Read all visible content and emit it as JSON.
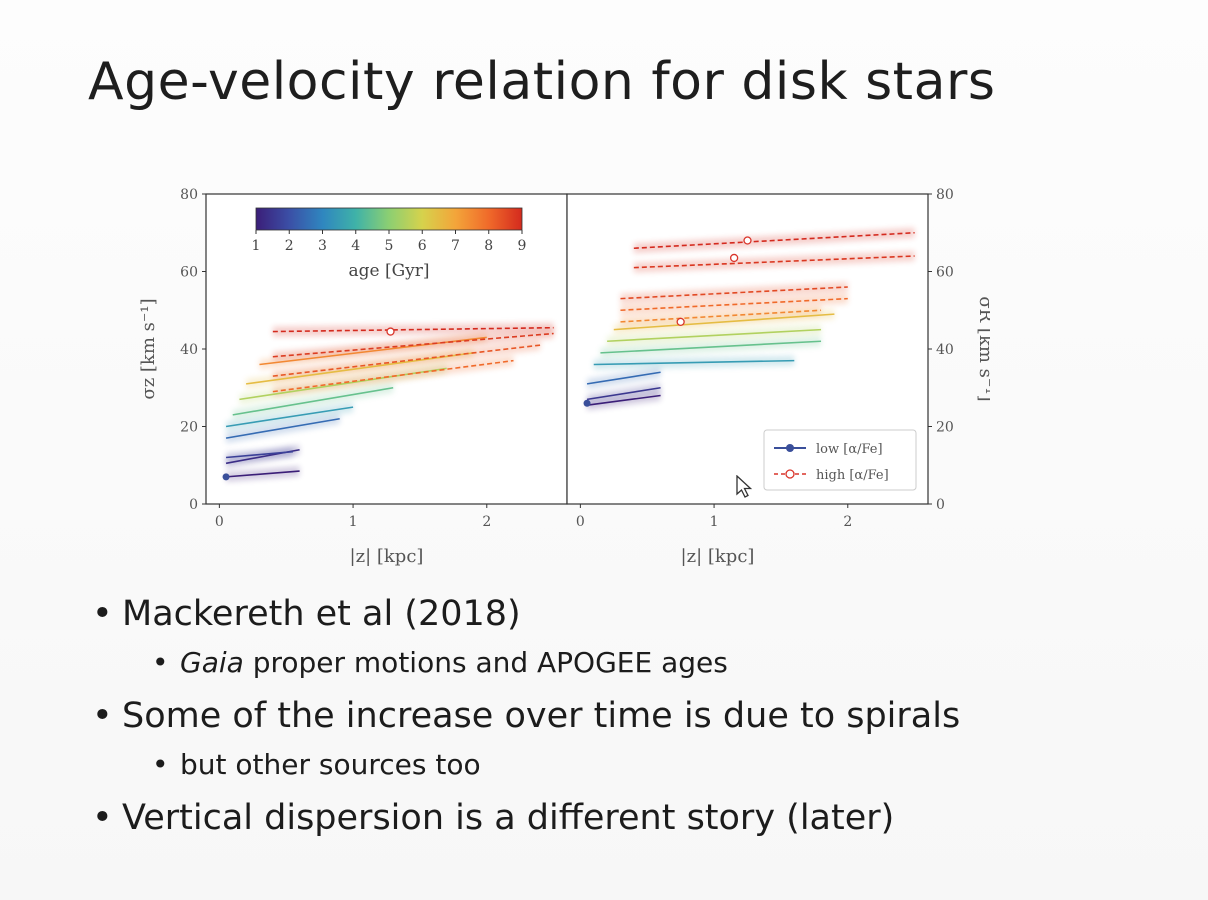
{
  "slide": {
    "title": "Age-velocity relation for disk stars",
    "bullets": [
      {
        "level": 1,
        "text": "Mackereth et al (2018)"
      },
      {
        "level": 2,
        "italic_prefix": "Gaia",
        "text": " proper motions and APOGEE ages"
      },
      {
        "level": 1,
        "text": "Some of the increase over time is due to spirals"
      },
      {
        "level": 2,
        "text": "but other sources too"
      },
      {
        "level": 1,
        "text": "Vertical dispersion is a different story (later)"
      }
    ]
  },
  "colors": {
    "age_scale": [
      "#3b1e78",
      "#3b4fa6",
      "#2f86bf",
      "#3fb2a8",
      "#8ccf72",
      "#d6d24c",
      "#f3a53a",
      "#f06a2a",
      "#d42a1e"
    ],
    "low_alpha_marker": "#3a4f9a",
    "high_alpha_marker": "#d9342a",
    "axis": "#333333",
    "tick_text": "#555555"
  },
  "chart_data": [
    {
      "type": "line",
      "panel": "left",
      "xlabel": "|z| [kpc]",
      "ylabel": "σz [km s⁻¹]",
      "xlim": [
        -0.1,
        2.6
      ],
      "ylim": [
        0,
        80
      ],
      "xticks": [
        0,
        1,
        2
      ],
      "yticks": [
        0,
        20,
        40,
        60,
        80
      ],
      "colorbar": {
        "label": "age [Gyr]",
        "min": 1,
        "max": 9,
        "ticks": [
          1,
          2,
          3,
          4,
          5,
          6,
          7,
          8,
          9
        ]
      },
      "series": [
        {
          "age": 1.0,
          "style": "solid",
          "x": [
            0.05,
            0.6
          ],
          "y": [
            7,
            8.5
          ]
        },
        {
          "age": 1.3,
          "style": "solid",
          "x": [
            0.05,
            0.6
          ],
          "y": [
            10.5,
            14
          ]
        },
        {
          "age": 1.7,
          "style": "solid",
          "x": [
            0.05,
            0.55
          ],
          "y": [
            12,
            13.5
          ]
        },
        {
          "age": 2.5,
          "style": "solid",
          "x": [
            0.05,
            0.9
          ],
          "y": [
            17,
            22
          ]
        },
        {
          "age": 3.5,
          "style": "solid",
          "x": [
            0.05,
            1.0
          ],
          "y": [
            20,
            25
          ]
        },
        {
          "age": 4.5,
          "style": "solid",
          "x": [
            0.1,
            1.3
          ],
          "y": [
            23,
            30
          ]
        },
        {
          "age": 5.5,
          "style": "solid",
          "x": [
            0.15,
            1.7
          ],
          "y": [
            27,
            35
          ]
        },
        {
          "age": 6.5,
          "style": "solid",
          "x": [
            0.2,
            1.9
          ],
          "y": [
            31,
            39
          ]
        },
        {
          "age": 7.5,
          "style": "solid",
          "x": [
            0.3,
            2.0
          ],
          "y": [
            36,
            43
          ]
        },
        {
          "age": 8.0,
          "style": "dashed",
          "x": [
            0.4,
            2.2
          ],
          "y": [
            29,
            37
          ]
        },
        {
          "age": 8.3,
          "style": "dashed",
          "x": [
            0.4,
            2.4
          ],
          "y": [
            33,
            41
          ]
        },
        {
          "age": 8.7,
          "style": "dashed",
          "x": [
            0.4,
            2.5
          ],
          "y": [
            38,
            44
          ]
        },
        {
          "age": 9.0,
          "style": "dashed",
          "x": [
            0.4,
            2.5
          ],
          "y": [
            44.5,
            45.5
          ]
        }
      ],
      "markers": [
        {
          "kind": "low",
          "x": 0.05,
          "y": 7
        },
        {
          "kind": "high",
          "x": 1.28,
          "y": 44.5
        }
      ]
    },
    {
      "type": "line",
      "panel": "right",
      "xlabel": "|z| [kpc]",
      "ylabel": "σR [km s⁻¹]",
      "xlim": [
        -0.1,
        2.6
      ],
      "ylim": [
        0,
        80
      ],
      "xticks": [
        0,
        1,
        2
      ],
      "yticks": [
        0,
        20,
        40,
        60,
        80
      ],
      "legend": {
        "position": "lower-right",
        "entries": [
          "low [α/Fe]",
          "high [α/Fe]"
        ]
      },
      "series": [
        {
          "age": 1.0,
          "style": "solid",
          "x": [
            0.05,
            0.6
          ],
          "y": [
            25.5,
            28
          ]
        },
        {
          "age": 1.5,
          "style": "solid",
          "x": [
            0.05,
            0.6
          ],
          "y": [
            27,
            30
          ]
        },
        {
          "age": 2.5,
          "style": "solid",
          "x": [
            0.05,
            0.6
          ],
          "y": [
            31,
            34
          ]
        },
        {
          "age": 3.5,
          "style": "solid",
          "x": [
            0.1,
            1.6
          ],
          "y": [
            36,
            37
          ]
        },
        {
          "age": 4.5,
          "style": "solid",
          "x": [
            0.15,
            1.8
          ],
          "y": [
            39,
            42
          ]
        },
        {
          "age": 5.5,
          "style": "solid",
          "x": [
            0.2,
            1.8
          ],
          "y": [
            42,
            45
          ]
        },
        {
          "age": 6.5,
          "style": "solid",
          "x": [
            0.25,
            1.9
          ],
          "y": [
            45,
            49
          ]
        },
        {
          "age": 7.5,
          "style": "dashed",
          "x": [
            0.3,
            1.8
          ],
          "y": [
            47,
            50
          ]
        },
        {
          "age": 8.0,
          "style": "dashed",
          "x": [
            0.3,
            2.0
          ],
          "y": [
            50,
            53
          ]
        },
        {
          "age": 8.5,
          "style": "dashed",
          "x": [
            0.3,
            2.0
          ],
          "y": [
            53,
            56
          ]
        },
        {
          "age": 8.8,
          "style": "dashed",
          "x": [
            0.4,
            2.5
          ],
          "y": [
            61,
            64
          ]
        },
        {
          "age": 9.0,
          "style": "dashed",
          "x": [
            0.4,
            2.5
          ],
          "y": [
            66,
            70
          ]
        }
      ],
      "markers": [
        {
          "kind": "low",
          "x": 0.05,
          "y": 26
        },
        {
          "kind": "high",
          "x": 0.75,
          "y": 47
        },
        {
          "kind": "high",
          "x": 1.15,
          "y": 63.5
        },
        {
          "kind": "high",
          "x": 1.25,
          "y": 68
        }
      ]
    }
  ]
}
